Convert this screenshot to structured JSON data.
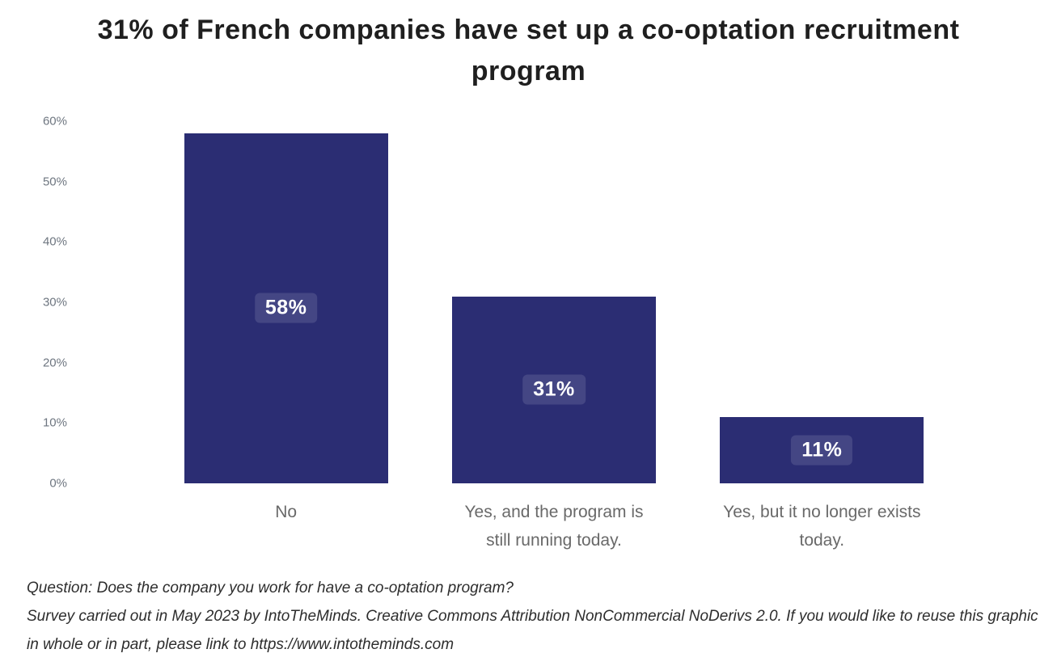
{
  "chart_data": {
    "type": "bar",
    "title": "31% of French companies have set up a co-optation recruitment program",
    "categories": [
      "No",
      "Yes, and the program is\nstill running today.",
      "Yes, but it no longer exists\ntoday."
    ],
    "values": [
      58,
      31,
      11
    ],
    "value_labels": [
      "58%",
      "31%",
      "11%"
    ],
    "xlabel": "",
    "ylabel": "",
    "ylim": [
      0,
      60
    ],
    "yticks": [
      0,
      10,
      20,
      30,
      40,
      50,
      60
    ],
    "ytick_labels": [
      "0%",
      "10%",
      "20%",
      "30%",
      "40%",
      "50%",
      "60%"
    ],
    "grid": false,
    "legend": "none",
    "bar_color": "#2b2d73",
    "value_chip_bg": "rgba(255,255,255,0.12)",
    "value_text_color": "#ffffff",
    "axis_text_color": "#6e7680",
    "category_text_color": "#696969"
  },
  "footer": {
    "question": "Question: Does the company you work for have a co-optation program?",
    "attribution": "Survey carried out in May 2023 by IntoTheMinds. Creative Commons Attribution NonCommercial NoDerivs 2.0. If you would like to reuse this graphic in whole or in part, please link to https://www.intotheminds.com"
  }
}
